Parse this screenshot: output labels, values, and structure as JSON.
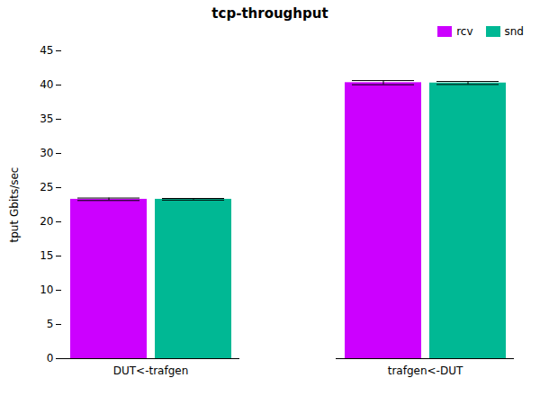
{
  "chart_data": {
    "type": "bar",
    "title": "tcp-throughput",
    "ylabel": "tput Gbits/sec",
    "categories": [
      "DUT<-trafgen",
      "trafgen<-DUT"
    ],
    "series": [
      {
        "name": "rcv",
        "color": "#cc00ff",
        "values": [
          23.3,
          40.35
        ],
        "errors": [
          0.18,
          0.3
        ]
      },
      {
        "name": "snd",
        "color": "#00b894",
        "values": [
          23.3,
          40.3
        ],
        "errors": [
          0.12,
          0.22
        ]
      }
    ],
    "ylim": [
      0,
      45
    ],
    "yticks": [
      0,
      5,
      10,
      15,
      20,
      25,
      30,
      35,
      40,
      45
    ],
    "grid": false,
    "legend": "upper right"
  }
}
